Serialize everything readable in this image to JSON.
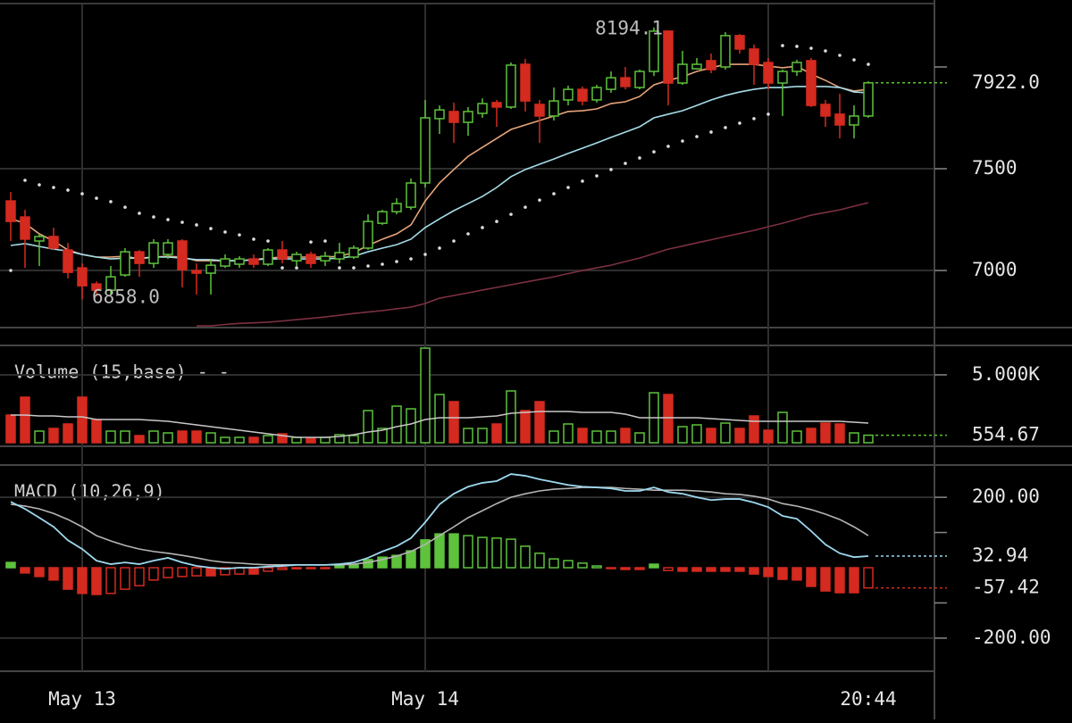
{
  "chart_data": [
    {
      "type": "candlestick",
      "categories": [
        null,
        null,
        null,
        null,
        null,
        "May 13",
        null,
        null,
        null,
        null,
        null,
        null,
        null,
        null,
        null,
        null,
        null,
        null,
        null,
        null,
        null,
        null,
        null,
        null,
        null,
        null,
        null,
        null,
        null,
        "May 14",
        null,
        null,
        null,
        null,
        null,
        null,
        null,
        null,
        null,
        null,
        null,
        null,
        null,
        null,
        null,
        null,
        null,
        null,
        null,
        null,
        null,
        null,
        null,
        null,
        null,
        null,
        null,
        null,
        null,
        null,
        "20:44"
      ],
      "open": [
        7342,
        7263,
        7145,
        7167,
        7101,
        7013,
        6934,
        6903,
        6978,
        7092,
        7035,
        7079,
        7145,
        7000,
        6987,
        7022,
        7031,
        7057,
        7031,
        7101,
        7048,
        7079,
        7048,
        7057,
        7066,
        7110,
        7232,
        7289,
        7311,
        7430,
        7746,
        7781,
        7728,
        7772,
        7825,
        7803,
        8013,
        7816,
        7759,
        7838,
        7890,
        7838,
        7890,
        7947,
        7899,
        7978,
        8176,
        7921,
        7991,
        8031,
        8000,
        8154,
        8088,
        8022,
        7921,
        7978,
        8031,
        7816,
        7768,
        7715,
        7759
      ],
      "high": [
        7386,
        7298,
        7180,
        7210,
        7136,
        7035,
        6947,
        7022,
        7110,
        7101,
        7154,
        7154,
        7154,
        7035,
        7057,
        7079,
        7070,
        7079,
        7110,
        7145,
        7092,
        7092,
        7092,
        7136,
        7123,
        7276,
        7298,
        7355,
        7452,
        7838,
        7811,
        7825,
        7803,
        7846,
        7838,
        8022,
        8040,
        7838,
        7899,
        7908,
        7904,
        7912,
        7978,
        8000,
        7987,
        8194.1,
        8180,
        8079,
        8044,
        8066,
        8171,
        8162,
        8110,
        8044,
        7987,
        8035,
        8044,
        7838,
        7868,
        7811,
        7930
      ],
      "low": [
        7145,
        7013,
        7022,
        7100,
        6961,
        6858,
        6872,
        6882,
        6969,
        6969,
        7013,
        7057,
        6917,
        6882,
        6882,
        7013,
        7013,
        7013,
        7022,
        7035,
        7022,
        7013,
        7022,
        7035,
        7057,
        7101,
        7224,
        7276,
        7298,
        7408,
        7671,
        7627,
        7662,
        7750,
        7706,
        7794,
        7781,
        7627,
        7737,
        7811,
        7811,
        7825,
        7873,
        7890,
        7890,
        7956,
        7811,
        7912,
        7987,
        7969,
        7987,
        8066,
        7912,
        7890,
        7759,
        7956,
        7803,
        7706,
        7649,
        7649,
        7750
      ],
      "close": [
        7241,
        7154,
        7167,
        7110,
        6991,
        6925,
        6903,
        6969,
        7092,
        7035,
        7136,
        7136,
        7004,
        6987,
        7026,
        7057,
        7057,
        7031,
        7101,
        7057,
        7079,
        7035,
        7070,
        7088,
        7110,
        7241,
        7289,
        7329,
        7430,
        7750,
        7789,
        7728,
        7781,
        7820,
        7803,
        8009,
        7833,
        7759,
        7833,
        7890,
        7833,
        7899,
        7947,
        7904,
        7978,
        8176,
        7921,
        8013,
        8013,
        7987,
        8154,
        8088,
        8013,
        7921,
        7978,
        8022,
        7811,
        7759,
        7715,
        7759,
        7922
      ],
      "up_color": "#5ec23c",
      "down_color": "#d42a1f",
      "lines": [
        {
          "color": "#e7a57a",
          "values": [
            7254,
            7232,
            7180,
            7145,
            7101,
            7079,
            7066,
            7066,
            7070,
            7057,
            7066,
            7070,
            7066,
            7048,
            7048,
            7048,
            7048,
            7053,
            7061,
            7066,
            7066,
            7066,
            7066,
            7070,
            7088,
            7123,
            7154,
            7180,
            7224,
            7342,
            7430,
            7496,
            7561,
            7605,
            7649,
            7693,
            7715,
            7737,
            7759,
            7781,
            7785,
            7794,
            7820,
            7829,
            7855,
            7912,
            7934,
            7952,
            7978,
            7996,
            8013,
            8013,
            8013,
            8004,
            7996,
            8004,
            7965,
            7934,
            7899,
            7882,
            7890
          ]
        },
        {
          "color": "#a6dde9",
          "values": [
            7123,
            7132,
            7118,
            7105,
            7096,
            7079,
            7066,
            7057,
            7061,
            7061,
            7066,
            7066,
            7061,
            7053,
            7053,
            7048,
            7048,
            7053,
            7057,
            7057,
            7057,
            7057,
            7057,
            7061,
            7070,
            7092,
            7110,
            7127,
            7154,
            7211,
            7254,
            7294,
            7329,
            7364,
            7408,
            7461,
            7496,
            7522,
            7548,
            7575,
            7601,
            7627,
            7654,
            7680,
            7706,
            7750,
            7768,
            7785,
            7811,
            7838,
            7860,
            7877,
            7890,
            7899,
            7899,
            7904,
            7904,
            7904,
            7899,
            7877,
            7873
          ]
        },
        {
          "color": "#7c3040",
          "values": [
            null,
            null,
            null,
            null,
            null,
            null,
            null,
            null,
            null,
            null,
            null,
            null,
            null,
            6728,
            6728,
            6735,
            6740,
            6743,
            6746,
            6752,
            6759,
            6765,
            6772,
            6780,
            6789,
            6796,
            6803,
            6812,
            6820,
            6838,
            6864,
            6877,
            6890,
            6904,
            6917,
            6930,
            6943,
            6956,
            6969,
            6985,
            7000,
            7013,
            7026,
            7044,
            7061,
            7083,
            7105,
            7120,
            7136,
            7151,
            7167,
            7182,
            7197,
            7215,
            7232,
            7252,
            7272,
            7285,
            7298,
            7316,
            7333
          ]
        }
      ],
      "sar": {
        "color": "#dddddd",
        "values": [
          7000,
          7443,
          7421,
          7408,
          7395,
          7377,
          7355,
          7338,
          7311,
          7281,
          7263,
          7250,
          7237,
          7224,
          7206,
          7189,
          7175,
          7154,
          7145,
          7013,
          7013,
          7140,
          7145,
          7013,
          7013,
          7022,
          7031,
          7044,
          7057,
          7079,
          7110,
          7145,
          7180,
          7211,
          7241,
          7276,
          7311,
          7346,
          7377,
          7408,
          7439,
          7465,
          7496,
          7526,
          7553,
          7583,
          7610,
          7636,
          7658,
          7680,
          7702,
          7724,
          7746,
          7768,
          8105,
          8101,
          8092,
          8079,
          8057,
          8035,
          8013
        ]
      },
      "high_label": "8194.1",
      "low_label": "6858.0",
      "ylim": [
        6724,
        8307
      ],
      "yticks": [
        7000,
        7500,
        {
          "value": 8000,
          "label": null
        }
      ],
      "grid": true,
      "last": [
        {
          "value": 7922,
          "label": "7922.0"
        }
      ],
      "last_color": [
        "#5ec23c"
      ]
    },
    {
      "type": "bar",
      "title": "Volume (15,base) - -",
      "values": [
        2038,
        3355,
        855,
        1052,
        1381,
        3355,
        1710,
        855,
        855,
        526,
        855,
        723,
        855,
        855,
        723,
        394,
        394,
        394,
        526,
        657,
        394,
        329,
        394,
        592,
        526,
        2367,
        1052,
        2695,
        2498,
        6968,
        3550,
        3024,
        1052,
        1052,
        1381,
        3813,
        2367,
        3024,
        855,
        1381,
        1052,
        855,
        855,
        1052,
        723,
        3681,
        3550,
        1183,
        1315,
        1052,
        1447,
        1052,
        1973,
        921,
        2235,
        855,
        1052,
        1447,
        1381,
        723,
        554.67
      ],
      "ma": {
        "color": "#c8c8c8",
        "values": [
          2038,
          2038,
          1972,
          1972,
          1906,
          1906,
          1709,
          1709,
          1709,
          1709,
          1644,
          1578,
          1446,
          1315,
          1183,
          1052,
          920,
          789,
          657,
          526,
          394,
          394,
          394,
          460,
          592,
          789,
          920,
          1183,
          1381,
          1709,
          1841,
          1841,
          1841,
          1906,
          1972,
          2169,
          2235,
          2301,
          2301,
          2301,
          2235,
          2235,
          2235,
          2104,
          1841,
          1841,
          1841,
          1841,
          1841,
          1775,
          1709,
          1644,
          1578,
          1578,
          1578,
          1578,
          1578,
          1578,
          1578,
          1512,
          1446
        ]
      },
      "ylim": [
        0,
        7100
      ],
      "yticks": [
        {
          "value": 5000,
          "label": "5.000K"
        }
      ],
      "grid": true,
      "last": [
        554.67
      ],
      "last_color": [
        "#5ec23c"
      ]
    },
    {
      "type": "macd",
      "title": "MACD (10,26,9)",
      "histogram": [
        15,
        -15,
        -25,
        -35,
        -61,
        -73,
        -76,
        -73,
        -61,
        -51,
        -35,
        -28,
        -25,
        -23,
        -23,
        -20,
        -18,
        -18,
        -10,
        -5,
        -3,
        -1,
        -1,
        5,
        8,
        23,
        30,
        35,
        48,
        79,
        96,
        96,
        91,
        86,
        84,
        81,
        61,
        41,
        25,
        20,
        13,
        5,
        -1,
        -5,
        -5,
        10,
        -8,
        -10,
        -10,
        -10,
        -10,
        -10,
        -18,
        -25,
        -33,
        -35,
        -53,
        -66,
        -71,
        -71,
        -57.42
      ],
      "macd": {
        "color": "#9dd8ee",
        "values": [
          187,
          167,
          142,
          116,
          78,
          53,
          20,
          10,
          15,
          10,
          20,
          28,
          15,
          5,
          0,
          -3,
          0,
          0,
          3,
          5,
          8,
          8,
          8,
          10,
          15,
          28,
          46,
          61,
          84,
          129,
          180,
          210,
          230,
          241,
          246,
          266,
          261,
          251,
          243,
          235,
          230,
          228,
          225,
          218,
          218,
          228,
          215,
          210,
          200,
          192,
          195,
          195,
          185,
          172,
          147,
          139,
          104,
          66,
          41,
          30,
          32.94
        ]
      },
      "signal": {
        "color": "#b4b4b4",
        "values": [
          180,
          175,
          167,
          154,
          137,
          116,
          91,
          76,
          63,
          53,
          46,
          41,
          35,
          28,
          20,
          15,
          13,
          10,
          8,
          8,
          8,
          8,
          8,
          8,
          10,
          15,
          23,
          33,
          46,
          66,
          91,
          116,
          142,
          162,
          182,
          200,
          210,
          218,
          223,
          225,
          228,
          228,
          228,
          225,
          223,
          220,
          220,
          220,
          218,
          215,
          210,
          208,
          203,
          195,
          182,
          175,
          165,
          152,
          137,
          116,
          91
        ]
      },
      "ylim": [
        -294,
        289
      ],
      "yticks": [
        {
          "value": -200,
          "label": "-200.00"
        },
        {
          "value": -100,
          "label": null
        },
        {
          "value": 100,
          "label": null
        },
        {
          "value": 200,
          "label": "200.00"
        }
      ],
      "grid": true,
      "last": [
        32.94,
        -57.42
      ],
      "last_color": [
        "#9dd8ee",
        "#d42a1f"
      ]
    }
  ]
}
